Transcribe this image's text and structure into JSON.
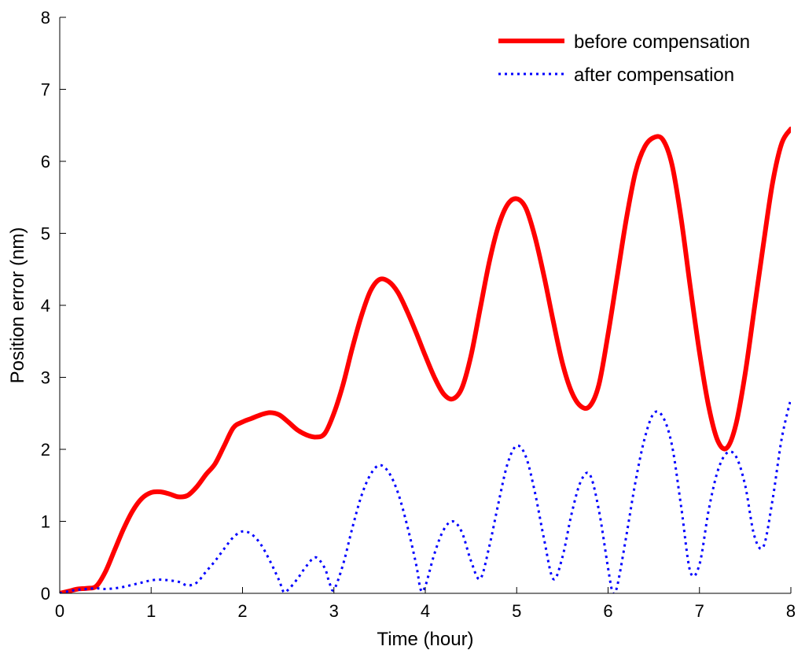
{
  "chart_data": {
    "type": "line",
    "title": "",
    "xlabel": "Time (hour)",
    "ylabel": "Position error (nm)",
    "xlim": [
      0,
      8
    ],
    "ylim": [
      0,
      8
    ],
    "xticks": [
      "0",
      "1",
      "2",
      "3",
      "4",
      "5",
      "6",
      "7",
      "8"
    ],
    "yticks": [
      "0",
      "1",
      "2",
      "3",
      "4",
      "5",
      "6",
      "7",
      "8"
    ],
    "grid": false,
    "legend_position": "top-right",
    "series": [
      {
        "name": "before compensation",
        "color": "#ff0000",
        "style": "solid",
        "x": [
          0,
          0.1,
          0.2,
          0.3,
          0.4,
          0.5,
          0.6,
          0.7,
          0.8,
          0.9,
          1.0,
          1.1,
          1.2,
          1.3,
          1.4,
          1.5,
          1.6,
          1.7,
          1.8,
          1.9,
          2.0,
          2.1,
          2.2,
          2.3,
          2.4,
          2.5,
          2.6,
          2.7,
          2.8,
          2.9,
          3.0,
          3.1,
          3.2,
          3.3,
          3.4,
          3.5,
          3.6,
          3.7,
          3.8,
          3.9,
          4.0,
          4.1,
          4.2,
          4.3,
          4.4,
          4.5,
          4.6,
          4.7,
          4.8,
          4.9,
          5.0,
          5.1,
          5.2,
          5.3,
          5.4,
          5.5,
          5.6,
          5.7,
          5.8,
          5.9,
          6.0,
          6.1,
          6.2,
          6.3,
          6.4,
          6.5,
          6.6,
          6.7,
          6.8,
          6.9,
          7.0,
          7.1,
          7.2,
          7.3,
          7.4,
          7.5,
          7.6,
          7.7,
          7.8,
          7.9,
          8.0
        ],
        "y": [
          0.0,
          0.03,
          0.06,
          0.07,
          0.1,
          0.3,
          0.6,
          0.9,
          1.15,
          1.32,
          1.4,
          1.41,
          1.38,
          1.34,
          1.36,
          1.48,
          1.65,
          1.8,
          2.05,
          2.3,
          2.38,
          2.43,
          2.48,
          2.51,
          2.48,
          2.38,
          2.27,
          2.2,
          2.17,
          2.22,
          2.5,
          2.9,
          3.4,
          3.85,
          4.2,
          4.36,
          4.33,
          4.18,
          3.92,
          3.62,
          3.3,
          3.0,
          2.77,
          2.7,
          2.85,
          3.3,
          3.95,
          4.6,
          5.1,
          5.4,
          5.48,
          5.35,
          4.95,
          4.4,
          3.78,
          3.2,
          2.8,
          2.6,
          2.6,
          2.9,
          3.6,
          4.4,
          5.2,
          5.85,
          6.2,
          6.33,
          6.3,
          5.95,
          5.2,
          4.25,
          3.35,
          2.6,
          2.12,
          2.02,
          2.35,
          3.05,
          3.95,
          4.85,
          5.7,
          6.25,
          6.45
        ]
      },
      {
        "name": "after compensation",
        "color": "#0000ff",
        "style": "dotted",
        "x": [
          0,
          0.1,
          0.2,
          0.3,
          0.4,
          0.5,
          0.6,
          0.7,
          0.8,
          0.9,
          1.0,
          1.1,
          1.2,
          1.3,
          1.4,
          1.5,
          1.6,
          1.7,
          1.8,
          1.9,
          2.0,
          2.1,
          2.2,
          2.3,
          2.4,
          2.45,
          2.5,
          2.6,
          2.7,
          2.8,
          2.9,
          2.95,
          3.0,
          3.1,
          3.2,
          3.3,
          3.4,
          3.5,
          3.6,
          3.7,
          3.8,
          3.9,
          3.95,
          4.0,
          4.1,
          4.2,
          4.3,
          4.4,
          4.5,
          4.6,
          4.7,
          4.8,
          4.9,
          5.0,
          5.1,
          5.2,
          5.3,
          5.4,
          5.5,
          5.6,
          5.7,
          5.8,
          5.9,
          6.0,
          6.05,
          6.1,
          6.2,
          6.3,
          6.4,
          6.5,
          6.6,
          6.7,
          6.8,
          6.9,
          7.0,
          7.1,
          7.2,
          7.3,
          7.4,
          7.5,
          7.6,
          7.7,
          7.8,
          7.9,
          8.0
        ],
        "y": [
          0.0,
          0.03,
          0.05,
          0.06,
          0.07,
          0.06,
          0.07,
          0.09,
          0.12,
          0.15,
          0.18,
          0.19,
          0.18,
          0.16,
          0.11,
          0.15,
          0.3,
          0.45,
          0.62,
          0.78,
          0.86,
          0.82,
          0.68,
          0.45,
          0.18,
          0.02,
          0.05,
          0.2,
          0.38,
          0.5,
          0.35,
          0.15,
          0.05,
          0.4,
          0.9,
          1.35,
          1.65,
          1.78,
          1.68,
          1.4,
          0.95,
          0.4,
          0.05,
          0.1,
          0.55,
          0.88,
          1.0,
          0.85,
          0.45,
          0.2,
          0.65,
          1.25,
          1.8,
          2.05,
          1.9,
          1.4,
          0.75,
          0.2,
          0.5,
          1.1,
          1.55,
          1.65,
          1.15,
          0.35,
          0.02,
          0.1,
          0.8,
          1.55,
          2.15,
          2.5,
          2.45,
          2.05,
          1.2,
          0.3,
          0.4,
          1.15,
          1.7,
          1.95,
          1.9,
          1.5,
          0.8,
          0.65,
          1.3,
          2.15,
          2.7
        ]
      }
    ]
  }
}
